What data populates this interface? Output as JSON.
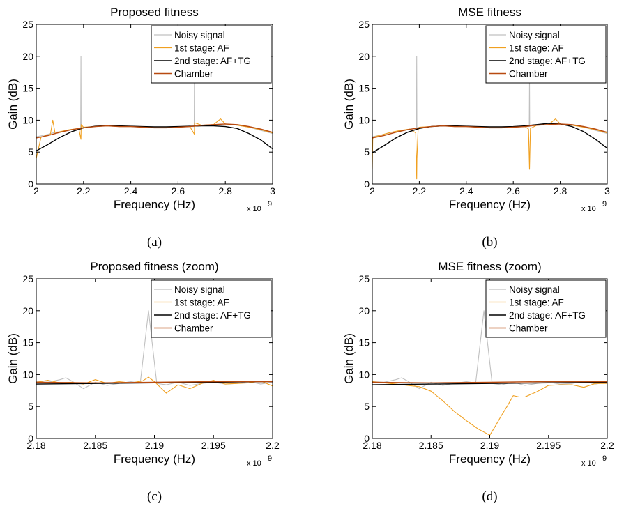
{
  "chart_data": [
    {
      "panel": "a",
      "type": "line",
      "title": "Proposed fitness",
      "xlabel": "Frequency (Hz)",
      "ylabel": "Gain (dB)",
      "x_exponent_label": "x 10",
      "x_exponent_power": "9",
      "caption": "(a)",
      "xlim": [
        2.0,
        3.0
      ],
      "ylim": [
        0,
        25
      ],
      "xticks": [
        "2",
        "2.2",
        "2.4",
        "2.6",
        "2.8",
        "3"
      ],
      "yticks": [
        "0",
        "5",
        "10",
        "15",
        "20",
        "25"
      ],
      "legend_position": "top-right",
      "series": [
        {
          "name": "Noisy signal",
          "color": "#c0c0c0",
          "x": [
            2.0,
            2.04,
            2.08,
            2.12,
            2.16,
            2.18,
            2.188,
            2.189,
            2.19,
            2.2,
            2.25,
            2.3,
            2.35,
            2.4,
            2.45,
            2.5,
            2.55,
            2.6,
            2.65,
            2.668,
            2.669,
            2.67,
            2.7,
            2.75,
            2.8,
            2.85,
            2.9,
            2.95,
            3.0
          ],
          "y": [
            7.4,
            7.7,
            8.1,
            8.3,
            8.6,
            8.7,
            8.7,
            20.0,
            8.8,
            8.9,
            9.0,
            9.1,
            9.0,
            9.0,
            8.9,
            8.8,
            8.8,
            8.9,
            9.0,
            9.0,
            16.5,
            9.1,
            9.2,
            9.3,
            9.4,
            9.2,
            8.9,
            8.4,
            7.9
          ]
        },
        {
          "name": "1st stage: AF",
          "color": "#f0a020",
          "x": [
            2.0,
            2.02,
            2.04,
            2.06,
            2.07,
            2.08,
            2.1,
            2.14,
            2.18,
            2.189,
            2.19,
            2.2,
            2.25,
            2.3,
            2.35,
            2.4,
            2.45,
            2.5,
            2.55,
            2.6,
            2.65,
            2.669,
            2.67,
            2.7,
            2.75,
            2.78,
            2.8,
            2.85,
            2.9,
            2.95,
            3.0
          ],
          "y": [
            4.0,
            7.3,
            7.6,
            7.8,
            10.0,
            7.9,
            8.2,
            8.5,
            8.7,
            7.0,
            9.3,
            8.9,
            9.0,
            9.1,
            9.0,
            9.0,
            8.9,
            8.8,
            8.8,
            8.9,
            9.0,
            7.8,
            9.6,
            9.2,
            9.3,
            10.2,
            9.4,
            9.2,
            8.9,
            8.5,
            8.0
          ]
        },
        {
          "name": "2nd stage: AF+TG",
          "color": "#000000",
          "x": [
            2.0,
            2.05,
            2.1,
            2.15,
            2.2,
            2.25,
            2.3,
            2.35,
            2.4,
            2.45,
            2.5,
            2.55,
            2.6,
            2.65,
            2.7,
            2.75,
            2.8,
            2.85,
            2.9,
            2.95,
            3.0
          ],
          "y": [
            5.2,
            6.2,
            7.3,
            8.2,
            8.8,
            9.05,
            9.15,
            9.1,
            9.05,
            9.0,
            8.95,
            8.95,
            9.0,
            9.05,
            9.1,
            9.1,
            9.0,
            8.7,
            7.9,
            6.9,
            5.5
          ]
        },
        {
          "name": "Chamber",
          "color": "#b84a10",
          "x": [
            2.0,
            2.05,
            2.1,
            2.15,
            2.2,
            2.25,
            2.3,
            2.35,
            2.4,
            2.45,
            2.5,
            2.55,
            2.6,
            2.65,
            2.7,
            2.75,
            2.8,
            2.85,
            2.9,
            2.95,
            3.0
          ],
          "y": [
            7.2,
            7.6,
            8.1,
            8.5,
            8.8,
            9.0,
            9.1,
            9.0,
            9.0,
            8.9,
            8.8,
            8.8,
            8.9,
            9.0,
            9.2,
            9.3,
            9.4,
            9.3,
            9.0,
            8.6,
            8.1
          ]
        }
      ]
    },
    {
      "panel": "b",
      "type": "line",
      "title": "MSE fitness",
      "xlabel": "Frequency (Hz)",
      "ylabel": "Gain (dB)",
      "x_exponent_label": "x 10",
      "x_exponent_power": "9",
      "caption": "(b)",
      "xlim": [
        2.0,
        3.0
      ],
      "ylim": [
        0,
        25
      ],
      "xticks": [
        "2",
        "2.2",
        "2.4",
        "2.6",
        "2.8",
        "3"
      ],
      "yticks": [
        "0",
        "5",
        "10",
        "15",
        "20",
        "25"
      ],
      "legend_position": "top-right",
      "series": [
        {
          "name": "Noisy signal",
          "color": "#c0c0c0",
          "x": [
            2.0,
            2.04,
            2.08,
            2.12,
            2.16,
            2.18,
            2.188,
            2.189,
            2.19,
            2.2,
            2.25,
            2.3,
            2.35,
            2.4,
            2.45,
            2.5,
            2.55,
            2.6,
            2.65,
            2.668,
            2.669,
            2.67,
            2.7,
            2.75,
            2.8,
            2.85,
            2.9,
            2.95,
            3.0
          ],
          "y": [
            7.4,
            7.7,
            8.1,
            8.3,
            8.6,
            8.7,
            8.7,
            20.0,
            8.8,
            8.9,
            9.0,
            9.1,
            9.0,
            9.0,
            8.9,
            8.8,
            8.8,
            8.9,
            9.0,
            9.0,
            16.5,
            9.1,
            9.2,
            9.3,
            9.4,
            9.2,
            8.9,
            8.4,
            7.9
          ]
        },
        {
          "name": "1st stage: AF",
          "color": "#f0a020",
          "x": [
            2.0,
            2.002,
            2.02,
            2.04,
            2.08,
            2.12,
            2.16,
            2.185,
            2.189,
            2.19,
            2.195,
            2.2,
            2.25,
            2.3,
            2.35,
            2.4,
            2.45,
            2.5,
            2.55,
            2.6,
            2.65,
            2.665,
            2.669,
            2.673,
            2.7,
            2.75,
            2.78,
            2.8,
            2.85,
            2.9,
            2.95,
            3.0
          ],
          "y": [
            2.3,
            7.3,
            7.5,
            7.7,
            8.1,
            8.4,
            8.6,
            8.0,
            0.8,
            4.0,
            8.5,
            8.9,
            9.0,
            9.1,
            9.0,
            9.0,
            8.9,
            8.8,
            8.8,
            8.9,
            9.0,
            8.6,
            2.3,
            8.7,
            9.2,
            9.3,
            10.2,
            9.4,
            9.2,
            8.9,
            8.5,
            8.0
          ]
        },
        {
          "name": "2nd stage: AF+TG",
          "color": "#000000",
          "x": [
            2.0,
            2.05,
            2.1,
            2.15,
            2.2,
            2.25,
            2.3,
            2.35,
            2.4,
            2.45,
            2.5,
            2.55,
            2.6,
            2.65,
            2.7,
            2.75,
            2.8,
            2.85,
            2.9,
            2.95,
            3.0
          ],
          "y": [
            4.9,
            6.0,
            7.2,
            8.1,
            8.7,
            9.0,
            9.1,
            9.1,
            9.05,
            9.0,
            8.95,
            8.95,
            9.0,
            9.1,
            9.3,
            9.5,
            9.4,
            9.0,
            8.2,
            7.0,
            5.6
          ]
        },
        {
          "name": "Chamber",
          "color": "#b84a10",
          "x": [
            2.0,
            2.05,
            2.1,
            2.15,
            2.2,
            2.25,
            2.3,
            2.35,
            2.4,
            2.45,
            2.5,
            2.55,
            2.6,
            2.65,
            2.7,
            2.75,
            2.8,
            2.85,
            2.9,
            2.95,
            3.0
          ],
          "y": [
            7.2,
            7.6,
            8.1,
            8.5,
            8.8,
            9.0,
            9.1,
            9.0,
            9.0,
            8.9,
            8.8,
            8.8,
            8.9,
            9.0,
            9.2,
            9.3,
            9.4,
            9.3,
            9.0,
            8.6,
            8.1
          ]
        }
      ]
    },
    {
      "panel": "c",
      "type": "line",
      "title": "Proposed fitness (zoom)",
      "xlabel": "Frequency (Hz)",
      "ylabel": "Gain (dB)",
      "x_exponent_label": "x 10",
      "x_exponent_power": "9",
      "caption": "(c)",
      "xlim": [
        2.18,
        2.2
      ],
      "ylim": [
        0,
        25
      ],
      "xticks": [
        "2.18",
        "2.185",
        "2.19",
        "2.195",
        "2.2"
      ],
      "yticks": [
        "0",
        "5",
        "10",
        "15",
        "20",
        "25"
      ],
      "legend_position": "top-right",
      "series": [
        {
          "name": "Noisy signal",
          "color": "#c0c0c0",
          "x": [
            2.18,
            2.181,
            2.182,
            2.1825,
            2.183,
            2.184,
            2.185,
            2.186,
            2.187,
            2.188,
            2.1888,
            2.1895,
            2.1902,
            2.191,
            2.192,
            2.193,
            2.194,
            2.195,
            2.196,
            2.197,
            2.198,
            2.199,
            2.2
          ],
          "y": [
            8.9,
            8.8,
            9.2,
            9.5,
            9.0,
            7.8,
            8.8,
            8.3,
            8.6,
            8.9,
            8.7,
            20.0,
            8.6,
            8.4,
            8.8,
            8.3,
            8.6,
            8.8,
            8.5,
            8.6,
            8.9,
            8.5,
            8.8
          ]
        },
        {
          "name": "1st stage: AF",
          "color": "#f0a020",
          "x": [
            2.18,
            2.181,
            2.182,
            2.183,
            2.184,
            2.185,
            2.186,
            2.187,
            2.188,
            2.189,
            2.1895,
            2.19,
            2.191,
            2.192,
            2.193,
            2.194,
            2.195,
            2.196,
            2.197,
            2.198,
            2.199,
            2.2
          ],
          "y": [
            8.8,
            9.1,
            8.7,
            8.8,
            8.5,
            9.2,
            8.6,
            8.9,
            8.7,
            9.0,
            9.6,
            8.9,
            7.1,
            8.4,
            7.8,
            8.6,
            9.1,
            8.5,
            8.6,
            8.7,
            9.0,
            8.2
          ]
        },
        {
          "name": "2nd stage: AF+TG",
          "color": "#000000",
          "x": [
            2.18,
            2.185,
            2.19,
            2.195,
            2.2
          ],
          "y": [
            8.5,
            8.6,
            8.7,
            8.8,
            8.9
          ]
        },
        {
          "name": "Chamber",
          "color": "#b84a10",
          "x": [
            2.18,
            2.185,
            2.19,
            2.195,
            2.2
          ],
          "y": [
            8.8,
            8.7,
            8.8,
            8.9,
            8.9
          ]
        }
      ]
    },
    {
      "panel": "d",
      "type": "line",
      "title": "MSE fitness (zoom)",
      "xlabel": "Frequency (Hz)",
      "ylabel": "Gain (dB)",
      "x_exponent_label": "x 10",
      "x_exponent_power": "9",
      "caption": "(d)",
      "xlim": [
        2.18,
        2.2
      ],
      "ylim": [
        0,
        25
      ],
      "xticks": [
        "2.18",
        "2.185",
        "2.19",
        "2.195",
        "2.2"
      ],
      "yticks": [
        "0",
        "5",
        "10",
        "15",
        "20",
        "25"
      ],
      "legend_position": "top-right",
      "series": [
        {
          "name": "Noisy signal",
          "color": "#c0c0c0",
          "x": [
            2.18,
            2.181,
            2.182,
            2.1825,
            2.183,
            2.184,
            2.185,
            2.186,
            2.187,
            2.188,
            2.1888,
            2.1895,
            2.1902,
            2.191,
            2.192,
            2.193,
            2.194,
            2.195,
            2.196,
            2.197,
            2.198,
            2.199,
            2.2
          ],
          "y": [
            8.9,
            8.8,
            9.2,
            9.5,
            9.0,
            7.8,
            8.8,
            8.3,
            8.6,
            8.9,
            8.7,
            20.0,
            8.6,
            8.4,
            8.8,
            8.3,
            8.6,
            8.8,
            8.5,
            8.6,
            8.9,
            8.5,
            8.8
          ]
        },
        {
          "name": "1st stage: AF",
          "color": "#f0a020",
          "x": [
            2.18,
            2.181,
            2.182,
            2.183,
            2.184,
            2.185,
            2.186,
            2.187,
            2.188,
            2.189,
            2.1895,
            2.19,
            2.1905,
            2.191,
            2.1915,
            2.192,
            2.1925,
            2.193,
            2.194,
            2.195,
            2.196,
            2.197,
            2.198,
            2.199,
            2.2
          ],
          "y": [
            8.9,
            8.7,
            8.5,
            8.3,
            8.1,
            7.4,
            5.9,
            4.2,
            2.8,
            1.5,
            1.0,
            0.5,
            2.0,
            3.6,
            5.1,
            6.7,
            6.5,
            6.5,
            7.3,
            8.3,
            8.4,
            8.4,
            8.0,
            8.6,
            8.6
          ]
        },
        {
          "name": "2nd stage: AF+TG",
          "color": "#000000",
          "x": [
            2.18,
            2.185,
            2.19,
            2.195,
            2.2
          ],
          "y": [
            8.4,
            8.5,
            8.6,
            8.7,
            8.8
          ]
        },
        {
          "name": "Chamber",
          "color": "#b84a10",
          "x": [
            2.18,
            2.185,
            2.19,
            2.195,
            2.2
          ],
          "y": [
            8.8,
            8.7,
            8.8,
            8.9,
            8.9
          ]
        }
      ]
    }
  ]
}
